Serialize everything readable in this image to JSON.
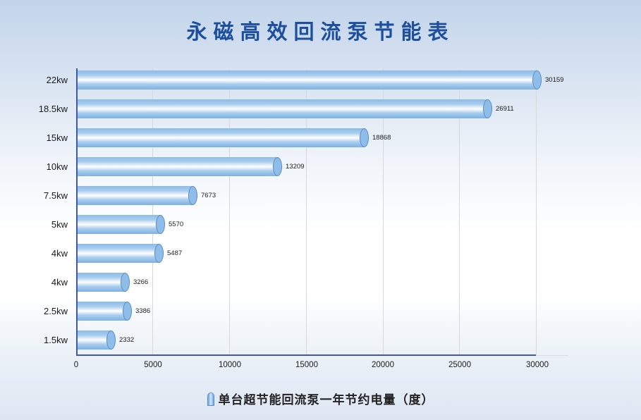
{
  "title": "永磁高效回流泵节能表",
  "legend": {
    "label": "单台超节能回流泵一年节约电量（度）",
    "icon": "cylinder-icon",
    "color": "#8ebde9"
  },
  "colors": {
    "title": "#1e4f9c",
    "bar": "#8ebde9",
    "axis": "#3e5aa6"
  },
  "chart_data": {
    "type": "bar",
    "orientation": "horizontal",
    "title": "永磁高效回流泵节能表",
    "xlabel": "",
    "ylabel": "",
    "categories": [
      "22kw",
      "18.5kw",
      "15kw",
      "10kw",
      "7.5kw",
      "5kw",
      "4kw",
      "4kw",
      "2.5kw",
      "1.5kw"
    ],
    "series": [
      {
        "name": "单台超节能回流泵一年节约电量（度）",
        "values": [
          30159,
          26911,
          18868,
          13209,
          7673,
          5570,
          5487,
          3266,
          3386,
          2332
        ]
      }
    ],
    "value_labels": [
      "30159",
      "26911",
      "18868",
      "13209",
      "7673",
      "5570",
      "5487",
      "3266",
      "3386",
      "2332"
    ],
    "xlim": [
      0,
      30000
    ],
    "xticks": [
      "0",
      "5000",
      "10000",
      "15000",
      "20000",
      "25000",
      "30000"
    ],
    "grid": "vertical",
    "legend_position": "bottom",
    "bar_style": "3d-cylinder"
  }
}
